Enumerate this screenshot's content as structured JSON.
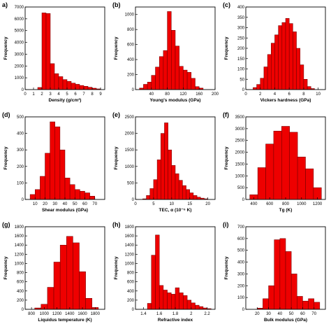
{
  "figure": {
    "bar_color": "#ee0000",
    "bar_edge": "#660000"
  },
  "chart_data": [
    {
      "panel": "a)",
      "type": "bar",
      "xlabel": "Density (g/cm³)",
      "ylabel": "Frequency",
      "bin_width": 0.5,
      "bins": [
        [
          1.5,
          180
        ],
        [
          2.0,
          6500
        ],
        [
          2.5,
          6450
        ],
        [
          3.0,
          2200
        ],
        [
          3.5,
          1350
        ],
        [
          4.0,
          1100
        ],
        [
          4.5,
          850
        ],
        [
          5.0,
          700
        ],
        [
          5.5,
          550
        ],
        [
          6.0,
          450
        ],
        [
          6.5,
          350
        ],
        [
          7.0,
          280
        ],
        [
          7.5,
          200
        ],
        [
          8.0,
          120
        ],
        [
          8.5,
          60
        ]
      ],
      "xlim": [
        0,
        9.5
      ],
      "ylim": [
        0,
        7000
      ],
      "xticks": [
        0,
        1,
        2,
        3,
        4,
        5,
        6,
        7,
        8,
        9
      ],
      "xtick_labels": [
        "0",
        "1",
        "2",
        "3",
        "4",
        "5",
        "6",
        "7",
        "8",
        "9"
      ],
      "yticks": [
        0,
        1000,
        2000,
        3000,
        4000,
        5000,
        6000,
        7000
      ],
      "ytick_labels": [
        "0",
        "1000",
        "2000",
        "3000",
        "4000",
        "5000",
        "6000",
        "7000"
      ]
    },
    {
      "panel": "(b)",
      "type": "bar",
      "xlabel": "Young's modulus (GPa)",
      "ylabel": "Frequency",
      "bin_width": 10,
      "bins": [
        [
          10,
          20
        ],
        [
          20,
          70
        ],
        [
          30,
          100
        ],
        [
          40,
          190
        ],
        [
          50,
          300
        ],
        [
          60,
          440
        ],
        [
          70,
          520
        ],
        [
          80,
          1040
        ],
        [
          90,
          790
        ],
        [
          100,
          580
        ],
        [
          110,
          310
        ],
        [
          120,
          260
        ],
        [
          130,
          230
        ],
        [
          140,
          150
        ],
        [
          150,
          40
        ],
        [
          160,
          20
        ]
      ],
      "xlim": [
        0,
        200
      ],
      "ylim": [
        0,
        1100
      ],
      "xticks": [
        40,
        80,
        120,
        160,
        200
      ],
      "xtick_labels": [
        "40",
        "80",
        "120",
        "160",
        "200"
      ],
      "yticks": [
        0,
        200,
        400,
        600,
        800,
        1000
      ],
      "ytick_labels": [
        "0",
        "200",
        "400",
        "600",
        "800",
        "1000"
      ]
    },
    {
      "panel": "(c)",
      "type": "bar",
      "xlabel": "Vickers hardness (GPa)",
      "ylabel": "Frequency",
      "bin_width": 0.5,
      "bins": [
        [
          1.0,
          10
        ],
        [
          1.5,
          25
        ],
        [
          2.0,
          55
        ],
        [
          2.5,
          110
        ],
        [
          3.0,
          170
        ],
        [
          3.5,
          225
        ],
        [
          4.0,
          265
        ],
        [
          4.5,
          310
        ],
        [
          5.0,
          325
        ],
        [
          5.5,
          345
        ],
        [
          6.0,
          320
        ],
        [
          6.5,
          280
        ],
        [
          7.0,
          200
        ],
        [
          7.5,
          120
        ],
        [
          8.0,
          50
        ],
        [
          8.5,
          15
        ],
        [
          9.0,
          5
        ]
      ],
      "xlim": [
        0,
        11
      ],
      "ylim": [
        0,
        400
      ],
      "xticks": [
        0,
        2,
        4,
        6,
        8,
        10
      ],
      "xtick_labels": [
        "0",
        "2",
        "4",
        "6",
        "8",
        "10"
      ],
      "yticks": [
        0,
        50,
        100,
        150,
        200,
        250,
        300,
        350,
        400
      ],
      "ytick_labels": [
        "0",
        "50",
        "100",
        "150",
        "200",
        "250",
        "300",
        "350",
        "400"
      ]
    },
    {
      "panel": "(d)",
      "type": "bar",
      "xlabel": "Shear modulus (GPa)",
      "ylabel": "Frequency",
      "bin_width": 5,
      "bins": [
        [
          5,
          30
        ],
        [
          10,
          60
        ],
        [
          15,
          140
        ],
        [
          20,
          280
        ],
        [
          25,
          470
        ],
        [
          30,
          440
        ],
        [
          35,
          300
        ],
        [
          40,
          130
        ],
        [
          45,
          90
        ],
        [
          50,
          60
        ],
        [
          55,
          50
        ],
        [
          60,
          40
        ],
        [
          65,
          20
        ]
      ],
      "xlim": [
        0,
        80
      ],
      "ylim": [
        0,
        500
      ],
      "xticks": [
        10,
        20,
        30,
        40,
        50,
        60,
        70
      ],
      "xtick_labels": [
        "10",
        "20",
        "30",
        "40",
        "50",
        "60",
        "70"
      ],
      "yticks": [
        0,
        100,
        200,
        300,
        400,
        500
      ],
      "ytick_labels": [
        "0",
        "100",
        "200",
        "300",
        "400",
        "500"
      ]
    },
    {
      "panel": "(e)",
      "type": "bar",
      "xlabel": "TEC, α (10⁻⁶ K)",
      "ylabel": "Frequency",
      "bin_width": 1,
      "bins": [
        [
          2,
          20
        ],
        [
          3,
          120
        ],
        [
          4,
          330
        ],
        [
          5,
          600
        ],
        [
          6,
          1200
        ],
        [
          7,
          2000
        ],
        [
          8,
          2320
        ],
        [
          9,
          1500
        ],
        [
          10,
          1030
        ],
        [
          11,
          780
        ],
        [
          12,
          580
        ],
        [
          13,
          420
        ],
        [
          14,
          300
        ],
        [
          15,
          200
        ],
        [
          16,
          120
        ],
        [
          17,
          70
        ],
        [
          18,
          40
        ],
        [
          19,
          20
        ]
      ],
      "xlim": [
        0,
        22
      ],
      "ylim": [
        0,
        2500
      ],
      "xticks": [
        0,
        5,
        10,
        15,
        20
      ],
      "xtick_labels": [
        "0",
        "5",
        "10",
        "15",
        "20"
      ],
      "yticks": [
        0,
        500,
        1000,
        1500,
        2000,
        2500
      ],
      "ytick_labels": [
        "0",
        "500",
        "1000",
        "1500",
        "2000",
        "2500"
      ]
    },
    {
      "panel": "(f)",
      "type": "bar",
      "xlabel": "Tɡ (K)",
      "ylabel": "Frequency",
      "bin_width": 100,
      "bins": [
        [
          350,
          200
        ],
        [
          450,
          1350
        ],
        [
          550,
          2350
        ],
        [
          650,
          2900
        ],
        [
          750,
          3100
        ],
        [
          850,
          2850
        ],
        [
          950,
          1800
        ],
        [
          1050,
          1300
        ],
        [
          1150,
          500
        ]
      ],
      "xlim": [
        300,
        1300
      ],
      "ylim": [
        0,
        3500
      ],
      "xticks": [
        400,
        600,
        800,
        1000,
        1200
      ],
      "xtick_labels": [
        "400",
        "600",
        "800",
        "1000",
        "1200"
      ],
      "yticks": [
        0,
        500,
        1000,
        1500,
        2000,
        2500,
        3000,
        3500
      ],
      "ytick_labels": [
        "0",
        "500",
        "1000",
        "1500",
        "2000",
        "2500",
        "3000",
        "3500"
      ]
    },
    {
      "panel": "(g)",
      "type": "bar",
      "xlabel": "Liquidus temperature (K)",
      "ylabel": "Frequency",
      "bin_width": 100,
      "bins": [
        [
          850,
          30
        ],
        [
          950,
          110
        ],
        [
          1050,
          480
        ],
        [
          1150,
          1030
        ],
        [
          1250,
          1400
        ],
        [
          1350,
          1590
        ],
        [
          1450,
          1450
        ],
        [
          1550,
          820
        ],
        [
          1650,
          240
        ],
        [
          1750,
          40
        ]
      ],
      "xlim": [
        700,
        1950
      ],
      "ylim": [
        0,
        1800
      ],
      "xticks": [
        800,
        1000,
        1200,
        1400,
        1600,
        1800
      ],
      "xtick_labels": [
        "800",
        "1000",
        "1200",
        "1400",
        "1600",
        "1800"
      ],
      "yticks": [
        0,
        200,
        400,
        600,
        800,
        1000,
        1200,
        1400,
        1600,
        1800
      ],
      "ytick_labels": [
        "0",
        "200",
        "400",
        "600",
        "800",
        "1000",
        "1200",
        "1400",
        "1600",
        "1800"
      ]
    },
    {
      "panel": "(h)",
      "type": "bar",
      "xlabel": "Refractive index",
      "ylabel": "Frequency",
      "bin_width": 0.05,
      "bins": [
        [
          1.45,
          130
        ],
        [
          1.5,
          1180
        ],
        [
          1.55,
          1620
        ],
        [
          1.6,
          520
        ],
        [
          1.65,
          420
        ],
        [
          1.7,
          360
        ],
        [
          1.75,
          330
        ],
        [
          1.8,
          470
        ],
        [
          1.85,
          360
        ],
        [
          1.9,
          300
        ],
        [
          1.95,
          200
        ],
        [
          2.0,
          140
        ],
        [
          2.05,
          90
        ],
        [
          2.1,
          60
        ],
        [
          2.15,
          30
        ],
        [
          2.2,
          15
        ]
      ],
      "xlim": [
        1.3,
        2.3
      ],
      "ylim": [
        0,
        1800
      ],
      "xticks": [
        1.4,
        1.6,
        1.8,
        2.0,
        2.2
      ],
      "xtick_labels": [
        "1.4",
        "1.6",
        "1.8",
        "2",
        "2.2"
      ],
      "yticks": [
        0,
        200,
        400,
        600,
        800,
        1000,
        1200,
        1400,
        1600,
        1800
      ],
      "ytick_labels": [
        "0",
        "200",
        "400",
        "600",
        "800",
        "1000",
        "1200",
        "1400",
        "1600",
        "1800"
      ]
    },
    {
      "panel": "(i)",
      "type": "bar",
      "xlabel": "Bulk modulus (GPa)",
      "ylabel": "Frequency",
      "bin_width": 5,
      "bins": [
        [
          20,
          10
        ],
        [
          25,
          90
        ],
        [
          30,
          200
        ],
        [
          35,
          590
        ],
        [
          40,
          600
        ],
        [
          45,
          490
        ],
        [
          50,
          300
        ],
        [
          55,
          110
        ],
        [
          60,
          70
        ],
        [
          65,
          90
        ],
        [
          70,
          60
        ]
      ],
      "xlim": [
        10,
        80
      ],
      "ylim": [
        0,
        700
      ],
      "xticks": [
        20,
        30,
        40,
        50,
        60,
        70
      ],
      "xtick_labels": [
        "20",
        "30",
        "40",
        "50",
        "60",
        "70"
      ],
      "yticks": [
        0,
        100,
        200,
        300,
        400,
        500,
        600,
        700
      ],
      "ytick_labels": [
        "0",
        "100",
        "200",
        "300",
        "400",
        "500",
        "600",
        "700"
      ]
    }
  ]
}
